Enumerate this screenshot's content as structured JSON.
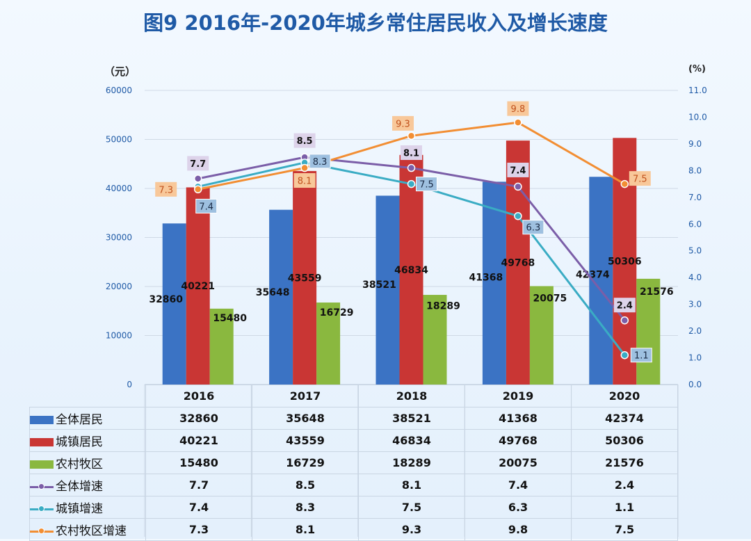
{
  "title": "图9  2016年-2020年城乡常住居民收入及增长速度",
  "chart_data": {
    "type": "bar",
    "title": "图9  2016年-2020年城乡常住居民收入及增长速度",
    "categories": [
      "2016",
      "2017",
      "2018",
      "2019",
      "2020"
    ],
    "y_left": {
      "label": "（元）",
      "ylim": [
        0,
        60000
      ],
      "ticks": [
        "0",
        "10000",
        "20000",
        "30000",
        "40000",
        "50000",
        "60000"
      ]
    },
    "y_right": {
      "label": "(%)",
      "ylim": [
        0,
        11
      ],
      "ticks": [
        "0.0",
        "1.0",
        "2.0",
        "3.0",
        "4.0",
        "5.0",
        "6.0",
        "7.0",
        "8.0",
        "9.0",
        "10.0",
        "11.0"
      ]
    },
    "grid": true,
    "series": [
      {
        "name": "全体居民",
        "type": "bar",
        "axis": "left",
        "color": "#3b73c4",
        "values": [
          32860,
          35648,
          38521,
          41368,
          42374
        ]
      },
      {
        "name": "城镇居民",
        "type": "bar",
        "axis": "left",
        "color": "#c93634",
        "values": [
          40221,
          43559,
          46834,
          49768,
          50306
        ]
      },
      {
        "name": "农村牧区",
        "type": "bar",
        "axis": "left",
        "color": "#8ab83f",
        "values": [
          15480,
          16729,
          18289,
          20075,
          21576
        ]
      },
      {
        "name": "全体增速",
        "type": "line",
        "axis": "right",
        "color": "#7b5ea8",
        "values": [
          7.7,
          8.5,
          8.1,
          7.4,
          2.4
        ]
      },
      {
        "name": "城镇增速",
        "type": "line",
        "axis": "right",
        "color": "#3aacc4",
        "values": [
          7.4,
          8.3,
          7.5,
          6.3,
          1.1
        ]
      },
      {
        "name": "农村牧区增速",
        "type": "line",
        "axis": "right",
        "color": "#f28e33",
        "values": [
          7.3,
          8.1,
          9.3,
          9.8,
          7.5
        ]
      }
    ]
  }
}
